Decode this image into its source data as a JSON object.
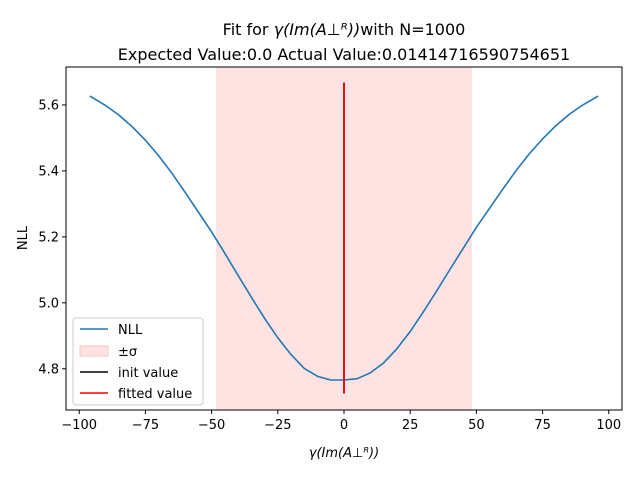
{
  "chart_data": {
    "type": "line",
    "title_line1_prefix": "Fit for ",
    "title_line1_symbol": "γ(Im(A⊥ᴿ))",
    "title_line1_suffix": "with N=1000",
    "title_line2": "Expected Value:0.0 Actual Value:0.01414716590754651",
    "xlabel": "γ(Im(A⊥ᴿ))",
    "ylabel": "NLL",
    "xlim": [
      -105,
      105
    ],
    "ylim": [
      4.675,
      5.715
    ],
    "xticks": [
      -100,
      -75,
      -50,
      -25,
      0,
      25,
      50,
      75,
      100
    ],
    "xtick_labels": [
      "−100",
      "−75",
      "−50",
      "−25",
      "0",
      "25",
      "50",
      "75",
      "100"
    ],
    "yticks": [
      4.8,
      5.0,
      5.2,
      5.4,
      5.6
    ],
    "ytick_labels": [
      "4.8",
      "5.0",
      "5.2",
      "5.4",
      "5.6"
    ],
    "series": [
      {
        "name": "NLL",
        "color": "#1f77b4",
        "x": [
          -96,
          -90,
          -85,
          -80,
          -75,
          -70,
          -65,
          -60,
          -55,
          -50,
          -45,
          -40,
          -35,
          -30,
          -25,
          -20,
          -15,
          -10,
          -5,
          0,
          5,
          10,
          15,
          20,
          25,
          30,
          35,
          40,
          45,
          50,
          55,
          60,
          65,
          70,
          75,
          80,
          85,
          90,
          96
        ],
        "y": [
          5.627,
          5.598,
          5.569,
          5.534,
          5.493,
          5.446,
          5.393,
          5.335,
          5.275,
          5.215,
          5.15,
          5.083,
          5.017,
          4.953,
          4.894,
          4.843,
          4.801,
          4.777,
          4.766,
          4.766,
          4.77,
          4.788,
          4.818,
          4.861,
          4.913,
          4.973,
          5.036,
          5.101,
          5.165,
          5.229,
          5.287,
          5.345,
          5.401,
          5.452,
          5.497,
          5.537,
          5.571,
          5.599,
          5.627
        ]
      }
    ],
    "sigma_band": {
      "label": "±σ",
      "x_min": -48,
      "x_max": 48,
      "color": "#ffc0c0"
    },
    "init_value": {
      "label": "init value",
      "x": 0.0,
      "y_min": 4.725,
      "y_max": 5.668,
      "color": "#000000"
    },
    "fitted_value": {
      "label": "fitted value",
      "x": 0.01414716590754651,
      "y_min": 4.725,
      "y_max": 5.668,
      "color": "#ff0000"
    },
    "legend": {
      "placement": "lower-left",
      "entries": [
        "NLL",
        "±σ",
        "init value",
        "fitted value"
      ]
    },
    "grid": false
  }
}
